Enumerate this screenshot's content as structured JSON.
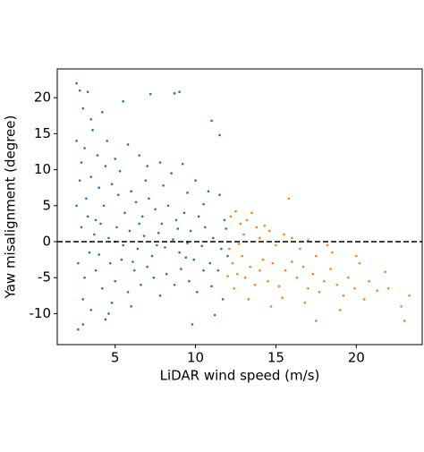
{
  "chart_data": {
    "type": "scatter",
    "xlabel": "LiDAR wind speed (m/s)",
    "ylabel": "Yaw misalignment (degree)",
    "xlim": [
      1.4,
      24.1
    ],
    "ylim": [
      -14.3,
      24.0
    ],
    "xticks": [
      5,
      10,
      15,
      20
    ],
    "yticks": [
      -10,
      -5,
      0,
      5,
      10,
      15,
      20
    ],
    "hline": 0,
    "series": [
      {
        "color": "#1f77b4",
        "x": [
          2.6,
          2.8,
          3.3,
          3.0,
          3.5,
          4.2,
          5.5,
          7.2,
          8.7,
          9.0,
          11.0,
          11.5,
          2.7,
          3.0,
          4.6,
          4.4,
          9.8,
          11.2,
          2.6,
          3.1,
          3.6,
          3.9,
          4.5,
          5.0,
          5.8,
          6.5,
          7.0,
          7.8,
          8.5,
          9.2,
          10.0,
          10.8,
          11.5,
          11.8,
          2.8,
          3.2,
          3.5,
          4.0,
          4.3,
          4.8,
          5.2,
          5.6,
          6.0,
          6.3,
          6.7,
          7.1,
          7.5,
          7.9,
          8.3,
          8.8,
          9.3,
          9.7,
          10.2,
          10.6,
          11.1,
          11.6,
          2.9,
          3.3,
          3.7,
          4.1,
          4.6,
          5.1,
          5.5,
          5.9,
          6.4,
          6.8,
          7.3,
          7.7,
          8.1,
          8.6,
          9.0,
          9.5,
          9.9,
          10.4,
          10.9,
          11.4,
          2.7,
          3.1,
          3.4,
          3.8,
          4.2,
          4.7,
          5.0,
          5.4,
          5.8,
          6.2,
          6.6,
          7.0,
          7.4,
          7.8,
          8.2,
          8.7,
          9.1,
          9.6,
          10.1,
          10.5,
          11.0,
          11.7,
          3.0,
          3.5,
          4.8,
          6.0,
          12.0,
          11.9,
          2.6,
          2.9,
          4.4,
          5.3,
          6.9,
          8.0,
          9.5,
          10.5,
          3.8,
          5.0,
          6.5,
          7.6,
          8.9,
          4.0,
          6.1,
          9.4
        ],
        "values": [
          22.0,
          21.0,
          20.8,
          18.5,
          17.0,
          18.0,
          19.5,
          20.5,
          20.6,
          20.8,
          16.8,
          14.8,
          -12.2,
          -11.5,
          -10.0,
          -10.8,
          -11.5,
          -10.2,
          14.0,
          13.0,
          15.5,
          12.0,
          14.0,
          11.5,
          13.5,
          12.0,
          10.5,
          11.0,
          9.5,
          10.8,
          8.5,
          7.0,
          6.5,
          3.0,
          8.5,
          6.0,
          9.0,
          7.5,
          5.0,
          8.0,
          6.5,
          4.0,
          7.0,
          5.5,
          3.5,
          6.0,
          4.5,
          2.5,
          5.0,
          3.0,
          4.0,
          1.5,
          3.5,
          2.0,
          0.5,
          -1.0,
          2.0,
          3.5,
          1.0,
          2.5,
          0.5,
          2.0,
          -0.5,
          1.5,
          -1.0,
          0.8,
          -2.0,
          1.2,
          -0.8,
          0.3,
          -1.5,
          -0.2,
          -2.5,
          -0.6,
          -3.0,
          -4.0,
          -3.0,
          -5.0,
          -1.5,
          -4.0,
          -6.5,
          -3.0,
          -5.5,
          -2.5,
          -7.0,
          -4.0,
          -6.0,
          -3.5,
          -5.0,
          -7.5,
          -4.5,
          -6.0,
          -3.8,
          -5.5,
          -7.0,
          -4.0,
          -6.2,
          -8.0,
          -8.0,
          -9.5,
          -8.5,
          -9.0,
          -2.0,
          1.8,
          5.0,
          11.0,
          10.5,
          9.8,
          8.5,
          7.8,
          6.8,
          5.2,
          3.0,
          0.0,
          2.5,
          -0.5,
          1.8,
          -1.8,
          -2.8,
          -2.2
        ]
      },
      {
        "color": "#ff7f0e",
        "x": [
          12.2,
          12.5,
          12.8,
          13.0,
          13.2,
          13.5,
          13.8,
          14.0,
          14.3,
          14.6,
          15.0,
          15.5,
          15.8,
          16.0,
          16.5,
          17.0,
          17.5,
          18.5,
          12.1,
          12.3,
          12.6,
          12.9,
          13.1,
          13.4,
          13.7,
          14.0,
          14.2,
          14.5,
          14.8,
          15.2,
          15.6,
          16.0,
          16.3,
          16.7,
          17.0,
          17.3,
          17.7,
          18.0,
          18.4,
          18.8,
          19.2,
          19.5,
          19.9,
          20.2,
          20.5,
          20.8,
          21.3,
          22.0,
          22.8,
          23.0,
          23.3,
          17.5,
          19.0,
          14.7,
          13.3,
          12.4,
          15.4,
          16.8,
          21.8,
          20.0,
          18.2,
          12.7,
          12.0
        ],
        "values": [
          3.5,
          4.2,
          2.5,
          1.0,
          3.0,
          4.0,
          2.0,
          0.5,
          2.2,
          1.5,
          -0.5,
          1.0,
          6.0,
          0.5,
          -1.0,
          0.2,
          -2.0,
          -1.5,
          -1.0,
          -3.0,
          -4.5,
          -2.0,
          -5.0,
          -3.5,
          -6.0,
          -4.0,
          -2.5,
          -5.5,
          -3.0,
          -6.2,
          -4.0,
          -2.8,
          -5.0,
          -3.5,
          -6.5,
          -4.5,
          -7.0,
          -5.5,
          -3.8,
          -6.0,
          -7.5,
          -5.0,
          -6.5,
          -3.0,
          -8.0,
          -5.5,
          -6.8,
          -6.5,
          -9.0,
          -11.0,
          -7.5,
          -11.0,
          -9.5,
          -9.0,
          -8.0,
          -6.5,
          -7.8,
          -8.5,
          -4.2,
          -2.0,
          -0.5,
          -0.3,
          -4.8
        ]
      }
    ]
  }
}
